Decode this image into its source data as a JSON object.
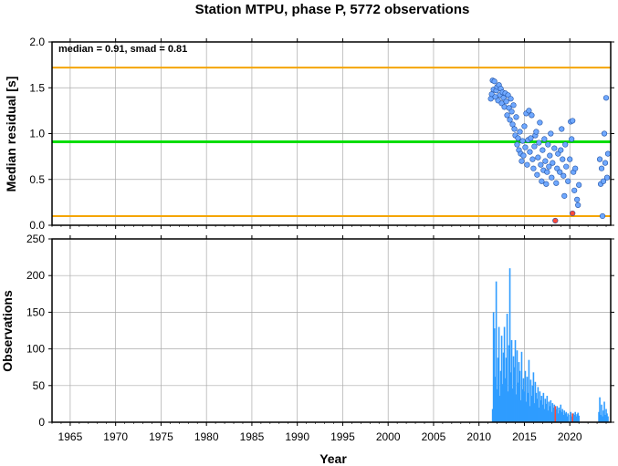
{
  "chart_data": [
    {
      "type": "scatter",
      "title": "Station MTPU, phase P, 5772 observations",
      "xlabel": "",
      "ylabel": "Median residual [s]",
      "annotation": "median = 0.91, smad = 0.81",
      "xlim": [
        1963,
        2024.5
      ],
      "ylim": [
        0.0,
        2.0
      ],
      "x_ticks": [
        "1965",
        "1970",
        "1975",
        "1980",
        "1985",
        "1990",
        "1995",
        "2000",
        "2005",
        "2010",
        "2015",
        "2020"
      ],
      "y_ticks": [
        "0.0",
        "0.5",
        "1.0",
        "1.5",
        "2.0"
      ],
      "grid": true,
      "reference_lines": [
        {
          "kind": "median",
          "y": 0.91,
          "color": "#00dd00"
        },
        {
          "kind": "upper",
          "y": 1.72,
          "color": "#f5a500"
        },
        {
          "kind": "lower",
          "y": 0.1,
          "color": "#f5a500"
        }
      ],
      "series": [
        {
          "color": "#6fa8ff",
          "points": [
            [
              2011.3,
              1.38
            ],
            [
              2011.4,
              1.43
            ],
            [
              2011.5,
              1.58
            ],
            [
              2011.6,
              1.48
            ],
            [
              2011.7,
              1.57
            ],
            [
              2011.8,
              1.4
            ],
            [
              2011.9,
              1.47
            ],
            [
              2012.0,
              1.51
            ],
            [
              2012.1,
              1.36
            ],
            [
              2012.2,
              1.53
            ],
            [
              2012.3,
              1.42
            ],
            [
              2012.4,
              1.49
            ],
            [
              2012.5,
              1.33
            ],
            [
              2012.6,
              1.45
            ],
            [
              2012.7,
              1.39
            ],
            [
              2012.8,
              1.29
            ],
            [
              2012.9,
              1.44
            ],
            [
              2013.0,
              1.35
            ],
            [
              2013.1,
              1.2
            ],
            [
              2013.2,
              1.42
            ],
            [
              2013.3,
              1.28
            ],
            [
              2013.4,
              1.15
            ],
            [
              2013.5,
              1.38
            ],
            [
              2013.6,
              1.24
            ],
            [
              2013.7,
              1.1
            ],
            [
              2013.8,
              1.31
            ],
            [
              2013.9,
              1.05
            ],
            [
              2014.0,
              0.98
            ],
            [
              2014.1,
              1.18
            ],
            [
              2014.2,
              0.88
            ],
            [
              2014.3,
              0.95
            ],
            [
              2014.4,
              0.82
            ],
            [
              2014.5,
              1.02
            ],
            [
              2014.6,
              0.78
            ],
            [
              2014.7,
              0.7
            ],
            [
              2014.8,
              0.92
            ],
            [
              2014.9,
              0.76
            ],
            [
              2015.0,
              1.08
            ],
            [
              2015.1,
              0.85
            ],
            [
              2015.2,
              1.22
            ],
            [
              2015.3,
              0.66
            ],
            [
              2015.4,
              0.93
            ],
            [
              2015.5,
              1.25
            ],
            [
              2015.6,
              0.8
            ],
            [
              2015.7,
              0.95
            ],
            [
              2015.8,
              1.2
            ],
            [
              2015.9,
              0.72
            ],
            [
              2016.0,
              0.62
            ],
            [
              2016.1,
              0.86
            ],
            [
              2016.2,
              0.98
            ],
            [
              2016.3,
              1.02
            ],
            [
              2016.4,
              0.55
            ],
            [
              2016.5,
              0.74
            ],
            [
              2016.6,
              0.9
            ],
            [
              2016.7,
              1.12
            ],
            [
              2016.8,
              0.66
            ],
            [
              2016.9,
              0.48
            ],
            [
              2017.0,
              0.82
            ],
            [
              2017.1,
              0.6
            ],
            [
              2017.2,
              0.94
            ],
            [
              2017.3,
              0.7
            ],
            [
              2017.4,
              0.45
            ],
            [
              2017.5,
              0.58
            ],
            [
              2017.6,
              0.88
            ],
            [
              2017.7,
              0.64
            ],
            [
              2017.8,
              0.76
            ],
            [
              2017.9,
              1.0
            ],
            [
              2018.0,
              0.52
            ],
            [
              2018.1,
              0.68
            ],
            [
              2018.3,
              0.84
            ],
            [
              2018.5,
              0.46
            ],
            [
              2018.6,
              0.62
            ],
            [
              2018.7,
              0.78
            ],
            [
              2018.9,
              0.58
            ],
            [
              2019.0,
              0.82
            ],
            [
              2019.1,
              1.05
            ],
            [
              2019.2,
              0.72
            ],
            [
              2019.3,
              0.54
            ],
            [
              2019.4,
              0.32
            ],
            [
              2019.5,
              0.88
            ],
            [
              2019.6,
              0.64
            ],
            [
              2019.8,
              0.48
            ],
            [
              2020.0,
              0.72
            ],
            [
              2020.1,
              1.13
            ],
            [
              2020.2,
              0.94
            ],
            [
              2020.3,
              1.14
            ],
            [
              2020.4,
              0.58
            ],
            [
              2020.5,
              0.38
            ],
            [
              2020.6,
              0.62
            ],
            [
              2020.8,
              0.28
            ],
            [
              2020.9,
              0.22
            ],
            [
              2021.0,
              0.44
            ],
            [
              2023.3,
              0.72
            ],
            [
              2023.4,
              0.45
            ],
            [
              2023.5,
              0.62
            ],
            [
              2023.6,
              0.1
            ],
            [
              2023.7,
              0.48
            ],
            [
              2023.8,
              1.0
            ],
            [
              2023.9,
              0.68
            ],
            [
              2024.0,
              1.39
            ],
            [
              2024.1,
              0.52
            ],
            [
              2024.2,
              0.78
            ]
          ]
        },
        {
          "color": "#ff4a3a",
          "points": [
            [
              2018.4,
              0.05
            ],
            [
              2020.3,
              0.13
            ]
          ]
        }
      ]
    },
    {
      "type": "bar",
      "title": "",
      "xlabel": "Year",
      "ylabel": "Observations",
      "xlim": [
        1963,
        2024.5
      ],
      "ylim": [
        0,
        250
      ],
      "x_ticks": [
        "1965",
        "1970",
        "1975",
        "1980",
        "1985",
        "1990",
        "1995",
        "2000",
        "2005",
        "2010",
        "2015",
        "2020"
      ],
      "y_ticks": [
        "0",
        "50",
        "100",
        "150",
        "200",
        "250"
      ],
      "grid": true,
      "bar_color": "#2f9cff",
      "highlight_color": "#ff4a3a",
      "bars": [
        [
          2011.5,
          18
        ],
        [
          2011.6,
          150
        ],
        [
          2011.7,
          128
        ],
        [
          2011.8,
          62
        ],
        [
          2011.9,
          192
        ],
        [
          2012.0,
          45
        ],
        [
          2012.1,
          88
        ],
        [
          2012.2,
          130
        ],
        [
          2012.3,
          36
        ],
        [
          2012.4,
          70
        ],
        [
          2012.5,
          118
        ],
        [
          2012.6,
          52
        ],
        [
          2012.7,
          95
        ],
        [
          2012.8,
          130
        ],
        [
          2012.9,
          60
        ],
        [
          2013.0,
          88
        ],
        [
          2013.1,
          148
        ],
        [
          2013.2,
          42
        ],
        [
          2013.3,
          105
        ],
        [
          2013.4,
          210
        ],
        [
          2013.5,
          68
        ],
        [
          2013.6,
          112
        ],
        [
          2013.7,
          46
        ],
        [
          2013.8,
          90
        ],
        [
          2013.9,
          75
        ],
        [
          2014.0,
          112
        ],
        [
          2014.1,
          38
        ],
        [
          2014.2,
          98
        ],
        [
          2014.3,
          54
        ],
        [
          2014.4,
          82
        ],
        [
          2014.5,
          70
        ],
        [
          2014.6,
          30
        ],
        [
          2014.7,
          96
        ],
        [
          2014.8,
          45
        ],
        [
          2014.9,
          60
        ],
        [
          2015.0,
          42
        ],
        [
          2015.1,
          70
        ],
        [
          2015.2,
          28
        ],
        [
          2015.3,
          62
        ],
        [
          2015.4,
          40
        ],
        [
          2015.5,
          85
        ],
        [
          2015.6,
          22
        ],
        [
          2015.7,
          58
        ],
        [
          2015.8,
          36
        ],
        [
          2015.9,
          50
        ],
        [
          2016.0,
          68
        ],
        [
          2016.1,
          26
        ],
        [
          2016.2,
          55
        ],
        [
          2016.3,
          40
        ],
        [
          2016.4,
          32
        ],
        [
          2016.5,
          48
        ],
        [
          2016.6,
          20
        ],
        [
          2016.7,
          42
        ],
        [
          2016.8,
          30
        ],
        [
          2016.9,
          36
        ],
        [
          2017.0,
          24
        ],
        [
          2017.1,
          40
        ],
        [
          2017.2,
          18
        ],
        [
          2017.3,
          32
        ],
        [
          2017.4,
          25
        ],
        [
          2017.5,
          36
        ],
        [
          2017.6,
          16
        ],
        [
          2017.7,
          28
        ],
        [
          2017.8,
          22
        ],
        [
          2017.9,
          30
        ],
        [
          2018.0,
          14
        ],
        [
          2018.1,
          26
        ],
        [
          2018.2,
          20
        ],
        [
          2018.3,
          24
        ],
        [
          2018.5,
          18
        ],
        [
          2018.6,
          22
        ],
        [
          2018.7,
          12
        ],
        [
          2018.8,
          20
        ],
        [
          2018.9,
          16
        ],
        [
          2019.0,
          24
        ],
        [
          2019.1,
          14
        ],
        [
          2019.2,
          18
        ],
        [
          2019.3,
          10
        ],
        [
          2019.4,
          16
        ],
        [
          2019.5,
          12
        ],
        [
          2019.6,
          14
        ],
        [
          2019.7,
          8
        ],
        [
          2019.8,
          12
        ],
        [
          2020.0,
          10
        ],
        [
          2020.1,
          14
        ],
        [
          2020.2,
          8
        ],
        [
          2020.4,
          12
        ],
        [
          2020.5,
          10
        ],
        [
          2020.6,
          14
        ],
        [
          2020.7,
          8
        ],
        [
          2020.8,
          11
        ],
        [
          2020.9,
          13
        ],
        [
          2021.0,
          9
        ],
        [
          2023.2,
          14
        ],
        [
          2023.3,
          34
        ],
        [
          2023.4,
          10
        ],
        [
          2023.5,
          24
        ],
        [
          2023.6,
          8
        ],
        [
          2023.7,
          16
        ],
        [
          2023.8,
          28
        ],
        [
          2023.9,
          10
        ],
        [
          2024.0,
          18
        ],
        [
          2024.1,
          12
        ],
        [
          2024.2,
          8
        ]
      ],
      "highlight_bars": [
        [
          2018.4,
          22
        ],
        [
          2020.3,
          12
        ]
      ]
    }
  ]
}
